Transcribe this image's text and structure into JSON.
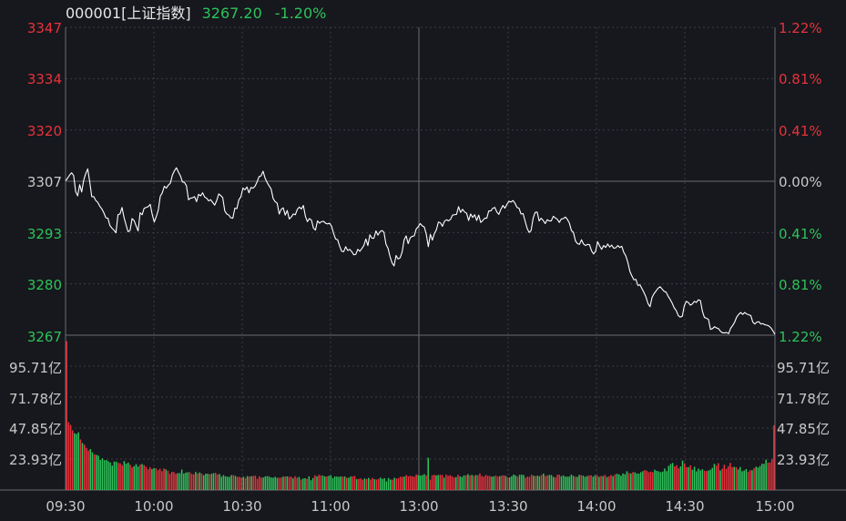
{
  "header": {
    "code": "000001[上证指数]",
    "price": "3267.20",
    "change": "-1.20%"
  },
  "colors": {
    "background": "#16181d",
    "grid": "#3a3d44",
    "midline": "#6a6d74",
    "up": "#e8323c",
    "down": "#2ec25a",
    "neutral": "#c8c8c8",
    "price_line": "#ffffff",
    "header_text": "#e6e6e6"
  },
  "chart_data": [
    {
      "type": "line",
      "series": [
        {
          "values": [
            3307.1,
            3307.8,
            3308.6,
            3309.2,
            3308.5,
            3304.3,
            3303.2,
            3306.1,
            3304.2,
            3307.3,
            3309.0,
            3310.2,
            3306.8,
            3303.0,
            3303.0,
            3302.0,
            3301.5,
            3300.5,
            3299.8,
            3298.8,
            3297.5,
            3297.4,
            3295.5,
            3294.8,
            3294.3,
            3293.6,
            3298.3,
            3298.5,
            3300.2,
            3297.6,
            3295.7,
            3293.9,
            3294.2,
            3297.3,
            3296.8,
            3295.4,
            3294.1,
            3298.8,
            3298.3,
            3300.0,
            3300.2,
            3300.4,
            3301.0,
            3298.4,
            3296.4,
            3297.8,
            3299.5,
            3303.1,
            3304.0,
            3305.7,
            3305.2,
            3306.0,
            3306.5,
            3308.6,
            3309.7,
            3310.5,
            3309.4,
            3308.4,
            3306.8,
            3306.7,
            3305.8,
            3302.2,
            3302.6,
            3302.7,
            3303.0,
            3301.7,
            3303.6,
            3303.2,
            3304.0,
            3302.9,
            3302.6,
            3301.9,
            3302.2,
            3301.5,
            3300.8,
            3302.0,
            3303.7,
            3303.3,
            3302.7,
            3299.3,
            3298.5,
            3298.2,
            3297.5,
            3297.4,
            3300.0,
            3299.9,
            3302.2,
            3303.0,
            3305.2,
            3304.8,
            3305.5,
            3304.0,
            3305.4,
            3305.2,
            3305.7,
            3306.8,
            3308.2,
            3308.4,
            3309.6,
            3307.8,
            3306.7,
            3305.8,
            3305.0,
            3302.5,
            3301.7,
            3301.3,
            3298.5,
            3299.7,
            3300.1,
            3298.2,
            3299.4,
            3297.2,
            3297.7,
            3298.5,
            3298.3,
            3299.7,
            3300.3,
            3299.8,
            3300.7,
            3297.9,
            3296.5,
            3297.3,
            3296.9,
            3294.8,
            3294.3,
            3296.7,
            3296.1,
            3296.5,
            3296.6,
            3296.1,
            3295.9,
            3296.1,
            3295.3,
            3293.4,
            3292.0,
            3291.8,
            3290.1,
            3288.8,
            3288.7,
            3290.0,
            3289.0,
            3289.3,
            3288.7,
            3287.9,
            3288.0,
            3289.3,
            3288.8,
            3289.5,
            3290.3,
            3292.0,
            3290.3,
            3293.1,
            3292.2,
            3292.2,
            3294.1,
            3293.0,
            3293.9,
            3294.2,
            3293.7,
            3290.6,
            3289.6,
            3287.4,
            3285.8,
            3285.0,
            3287.7,
            3286.8,
            3287.1,
            3288.6,
            3291.8,
            3292.8,
            3290.8,
            3292.3,
            3292.7,
            3292.8,
            3294.6,
            3295.2,
            3296.0,
            3295.4,
            3295.1,
            3293.2,
            3290.0,
            3293.2,
            3291.7,
            3293.4,
            3294.4,
            3296.4,
            3296.2,
            3295.3,
            3296.6,
            3297.0,
            3296.7,
            3297.1,
            3298.2,
            3298.3,
            3298.4,
            3300.4,
            3298.9,
            3299.7,
            3299.0,
            3298.7,
            3296.8,
            3298.5,
            3297.6,
            3298.3,
            3296.8,
            3298.2,
            3296.3,
            3296.8,
            3297.4,
            3297.4,
            3299.3,
            3299.3,
            3300.0,
            3300.2,
            3299.0,
            3298.4,
            3299.7,
            3300.7,
            3300.0,
            3301.0,
            3301.8,
            3301.6,
            3302.0,
            3301.3,
            3300.2,
            3300.0,
            3298.5,
            3298.6,
            3296.7,
            3294.8,
            3293.7,
            3294.2,
            3297.4,
            3298.9,
            3299.0,
            3296.7,
            3297.4,
            3296.8,
            3296.0,
            3297.0,
            3296.7,
            3296.7,
            3297.9,
            3297.5,
            3297.1,
            3296.3,
            3297.2,
            3297.3,
            3297.7,
            3297.1,
            3296.1,
            3294.2,
            3293.7,
            3291.5,
            3290.8,
            3290.6,
            3291.8,
            3290.7,
            3290.3,
            3290.6,
            3290.5,
            3288.9,
            3288.1,
            3288.8,
            3291.3,
            3290.2,
            3289.3,
            3290.3,
            3289.8,
            3290.7,
            3289.9,
            3290.4,
            3289.6,
            3289.7,
            3290.3,
            3289.8,
            3290.1,
            3288.5,
            3287.6,
            3285.9,
            3283.6,
            3282.4,
            3281.4,
            3281.5,
            3279.9,
            3280.1,
            3279.1,
            3278.1,
            3276.9,
            3275.2,
            3274.4,
            3276.8,
            3277.8,
            3278.5,
            3279.2,
            3279.6,
            3279.0,
            3278.4,
            3278.2,
            3277.1,
            3276.3,
            3275.3,
            3274.1,
            3273.4,
            3272.1,
            3271.7,
            3271.9,
            3274.6,
            3275.8,
            3275.5,
            3274.8,
            3275.1,
            3275.8,
            3275.5,
            3276.2,
            3276.0,
            3273.2,
            3271.6,
            3271.4,
            3271.1,
            3268.5,
            3268.7,
            3269.2,
            3268.9,
            3268.7,
            3268.0,
            3267.6,
            3267.6,
            3267.7,
            3267.4,
            3268.8,
            3269.5,
            3270.4,
            3271.7,
            3272.4,
            3272.9,
            3272.4,
            3272.9,
            3272.5,
            3272.3,
            3272.1,
            3270.4,
            3269.9,
            3270.4,
            3270.5,
            3269.9,
            3270.0,
            3269.7,
            3269.6,
            3269.4,
            3268.9,
            3268.1,
            3267.2
          ]
        }
      ],
      "x_tick_labels": [
        "09:30",
        "10:00",
        "10:30",
        "11:00",
        "13:00",
        "13:30",
        "14:00",
        "14:30",
        "15:00"
      ],
      "y_left_labels": [
        "3347",
        "3334",
        "3320",
        "3307",
        "3293",
        "3280",
        "3267"
      ],
      "y_right_labels": [
        "1.22%",
        "0.81%",
        "0.41%",
        "0.00%",
        "0.41%",
        "0.81%",
        "1.22%"
      ],
      "prev_close": 3307.0,
      "ylim": [
        3267,
        3347
      ],
      "grid": true
    },
    {
      "type": "bar",
      "unit_label": "亿",
      "y_labels": [
        "95.71亿",
        "71.78亿",
        "47.85亿",
        "23.93亿"
      ],
      "ylim": [
        0,
        119.64
      ],
      "grid": true,
      "series": [
        {
          "values": [
            115.0,
            52.4,
            50.4,
            46.1,
            43.9,
            43.3,
            44.6,
            39.1,
            36.3,
            35.0,
            32.6,
            30.4,
            31.7,
            29.1,
            27.5,
            27.2,
            26.6,
            23.3,
            24.5,
            23.1,
            23.1,
            22.3,
            21.3,
            18.9,
            22.0,
            21.9,
            21.0,
            20.6,
            19.1,
            22.4,
            20.4,
            21.2,
            19.6,
            17.5,
            18.5,
            19.9,
            18.1,
            19.6,
            20.1,
            19.3,
            18.1,
            16.0,
            17.7,
            16.2,
            17.0,
            16.8,
            15.4,
            16.5,
            14.6,
            16.7,
            15.9,
            14.9,
            12.5,
            14.1,
            13.9,
            12.5,
            13.1,
            13.1,
            15.8,
            12.7,
            13.5,
            13.7,
            13.9,
            12.5,
            12.1,
            14.0,
            12.8,
            13.6,
            12.7,
            11.4,
            12.6,
            12.6,
            12.2,
            12.6,
            13.0,
            13.3,
            12.0,
            12.4,
            10.3,
            11.6,
            10.6,
            10.3,
            10.2,
            11.6,
            11.5,
            10.9,
            10.1,
            10.2,
            9.6,
            10.3,
            9.3,
            10.8,
            10.4,
            10.7,
            10.9,
            11.1,
            8.7,
            10.6,
            9.6,
            9.7,
            10.5,
            10.8,
            10.3,
            9.7,
            9.5,
            10.2,
            9.4,
            9.6,
            9.7,
            10.4,
            10.4,
            10.6,
            10.3,
            10.3,
            9.1,
            10.7,
            9.5,
            10.2,
            8.1,
            8.9,
            9.1,
            8.6,
            10.6,
            7.6,
            9.3,
            11.4,
            10.5,
            11.7,
            11.3,
            11.1,
            10.5,
            10.5,
            11.0,
            11.3,
            9.3,
            10.5,
            10.4,
            10.2,
            10.5,
            10.3,
            10.5,
            9.5,
            9.5,
            10.5,
            10.5,
            10.9,
            8.4,
            8.6,
            9.0,
            8.0,
            8.9,
            8.5,
            9.4,
            8.1,
            9.4,
            8.4,
            8.1,
            8.7,
            9.6,
            8.5,
            9.2,
            6.7,
            9.3,
            8.1,
            8.0,
            9.5,
            8.9,
            9.2,
            10.3,
            10.2,
            10.5,
            11.6,
            10.5,
            11.0,
            10.6,
            10.3,
            12.0,
            11.5,
            11.2,
            11.5,
            12.3,
            11.2,
            25.0,
            8.0,
            11.4,
            11.8,
            11.3,
            11.6,
            11.8,
            11.7,
            9.6,
            11.9,
            11.0,
            11.4,
            10.7,
            9.6,
            10.0,
            11.8,
            10.5,
            10.1,
            11.3,
            11.4,
            12.3,
            11.3,
            11.7,
            11.0,
            11.6,
            11.5,
            12.8,
            10.8,
            10.4,
            11.7,
            11.0,
            10.8,
            10.3,
            10.6,
            11.2,
            10.3,
            10.7,
            11.2,
            11.4,
            10.9,
            9.8,
            9.8,
            10.7,
            12.0,
            11.3,
            10.4,
            11.8,
            11.8,
            11.7,
            9.5,
            10.5,
            10.2,
            11.8,
            11.1,
            10.8,
            11.1,
            10.7,
            11.6,
            12.7,
            10.9,
            11.4,
            11.7,
            11.6,
            10.2,
            9.7,
            11.8,
            11.9,
            10.7,
            11.3,
            10.4,
            10.3,
            10.4,
            11.9,
            11.0,
            10.3,
            10.2,
            11.7,
            11.5,
            11.1,
            10.2,
            10.8,
            11.3,
            11.4,
            10.4,
            11.5,
            11.4,
            10.2,
            10.9,
            10.8,
            11.7,
            10.1,
            10.6,
            11.7,
            10.7,
            12.1,
            12.6,
            12.1,
            11.1,
            12.8,
            12.2,
            14.5,
            13.1,
            12.8,
            13.9,
            13.7,
            12.8,
            12.7,
            13.8,
            14.6,
            15.5,
            14.9,
            13.8,
            14.2,
            13.8,
            15.7,
            14.8,
            14.4,
            13.8,
            14.3,
            16.6,
            14.6,
            18.6,
            20.1,
            20.9,
            18.3,
            19.2,
            16.8,
            18.2,
            22.7,
            20.6,
            17.7,
            17.7,
            19.1,
            15.7,
            18.0,
            14.4,
            16.5,
            15.2,
            16.1,
            14.9,
            14.7,
            15.1,
            15.7,
            17.1,
            20.2,
            18.8,
            20.7,
            15.1,
            16.5,
            19.5,
            16.4,
            18.4,
            21.0,
            17.7,
            17.9,
            17.6,
            15.9,
            17.8,
            14.5,
            15.1,
            16.2,
            14.1,
            15.3,
            15.3,
            16.9,
            18.1,
            17.4,
            18.6,
            20.3,
            20.2,
            23.4,
            21.1,
            21.3,
            23.8,
            50.0
          ]
        }
      ]
    }
  ]
}
